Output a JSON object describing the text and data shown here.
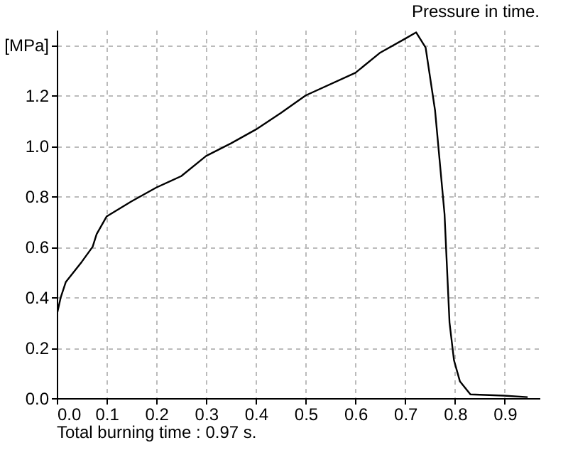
{
  "chart_data": {
    "type": "line",
    "title": "Pressure in time.",
    "annotations": [
      "Total burning time : 0.97 s."
    ],
    "series": [
      {
        "color": "#000000",
        "x": [
          0,
          0.008,
          0.018,
          0.05,
          0.072,
          0.08,
          0.1,
          0.15,
          0.2,
          0.25,
          0.3,
          0.35,
          0.4,
          0.45,
          0.5,
          0.6,
          0.65,
          0.7,
          0.722,
          0.741,
          0.76,
          0.779,
          0.782,
          0.789,
          0.798,
          0.81,
          0.831,
          0.898,
          0.946
        ],
        "values": [
          0.33,
          0.4,
          0.46,
          0.54,
          0.6,
          0.65,
          0.72,
          0.78,
          0.835,
          0.88,
          0.96,
          1.01,
          1.065,
          1.13,
          1.2,
          1.29,
          1.37,
          1.425,
          1.45,
          1.39,
          1.14,
          0.73,
          0.6,
          0.3,
          0.15,
          0.066,
          0.015,
          0.01,
          0.004
        ]
      }
    ],
    "xlim": [
      0,
      0.97
    ],
    "ylim": [
      0,
      1.46
    ],
    "xticks": [
      {
        "value": 0,
        "label": "0.0"
      },
      0.1,
      0.2,
      0.3,
      0.4,
      0.5,
      0.6,
      0.7,
      0.8,
      0.9
    ],
    "yticks": [
      {
        "value": 0,
        "label": "0.0"
      },
      0.2,
      0.4,
      0.6,
      0.8,
      {
        "value": 1,
        "label": "1.0"
      },
      1.2,
      {
        "value": 1.4,
        "label": "[MPa]"
      }
    ],
    "grid": true,
    "line_style": "solid",
    "marker": "none"
  }
}
